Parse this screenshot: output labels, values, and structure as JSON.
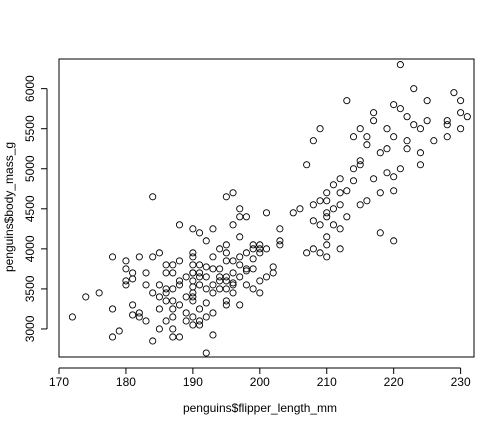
{
  "chart_data": {
    "type": "scatter",
    "title": "",
    "xlabel": "penguins$flipper_length_mm",
    "ylabel": "penguins$body_mass_g",
    "xlim": [
      170,
      232
    ],
    "ylim": [
      2650,
      6370
    ],
    "xticks": [
      170,
      180,
      190,
      200,
      210,
      220,
      230
    ],
    "yticks": [
      3000,
      3500,
      4000,
      4500,
      5000,
      5500,
      6000
    ],
    "grid": false,
    "legend": "none",
    "marker": "open-circle",
    "color": "#000000",
    "points": [
      [
        172,
        3150
      ],
      [
        174,
        3400
      ],
      [
        176,
        3450
      ],
      [
        178,
        3250
      ],
      [
        178,
        2900
      ],
      [
        178,
        3900
      ],
      [
        179,
        2975
      ],
      [
        180,
        3550
      ],
      [
        180,
        3600
      ],
      [
        180,
        3750
      ],
      [
        180,
        3850
      ],
      [
        181,
        3700
      ],
      [
        181,
        3625
      ],
      [
        181,
        3300
      ],
      [
        181,
        3175
      ],
      [
        182,
        3150
      ],
      [
        182,
        3200
      ],
      [
        182,
        3900
      ],
      [
        183,
        3550
      ],
      [
        183,
        3700
      ],
      [
        184,
        2850
      ],
      [
        184,
        3450
      ],
      [
        184,
        3900
      ],
      [
        184,
        4650
      ],
      [
        185,
        3400
      ],
      [
        185,
        3950
      ],
      [
        185,
        3550
      ],
      [
        185,
        3000
      ],
      [
        186,
        3800
      ],
      [
        186,
        3500
      ],
      [
        186,
        3450
      ],
      [
        186,
        3100
      ],
      [
        186,
        3350
      ],
      [
        186,
        3700
      ],
      [
        187,
        3250
      ],
      [
        187,
        3350
      ],
      [
        187,
        2900
      ],
      [
        187,
        3500
      ],
      [
        187,
        3700
      ],
      [
        187,
        3800
      ],
      [
        187,
        3150
      ],
      [
        187,
        3000
      ],
      [
        188,
        3550
      ],
      [
        188,
        2900
      ],
      [
        188,
        3600
      ],
      [
        188,
        3300
      ],
      [
        188,
        3850
      ],
      [
        188,
        4300
      ],
      [
        189,
        3650
      ],
      [
        189,
        3200
      ],
      [
        189,
        3400
      ],
      [
        189,
        3100
      ],
      [
        190,
        3450
      ],
      [
        190,
        3700
      ],
      [
        190,
        3800
      ],
      [
        190,
        3900
      ],
      [
        190,
        3050
      ],
      [
        190,
        3600
      ],
      [
        190,
        4250
      ],
      [
        190,
        3350
      ],
      [
        190,
        3950
      ],
      [
        190,
        3525
      ],
      [
        190,
        3150
      ],
      [
        190,
        3700
      ],
      [
        190,
        3400
      ],
      [
        191,
        3550
      ],
      [
        191,
        3800
      ],
      [
        191,
        3250
      ],
      [
        191,
        3650
      ],
      [
        191,
        3100
      ],
      [
        191,
        4200
      ],
      [
        191,
        3700
      ],
      [
        191,
        3050
      ],
      [
        192,
        2700
      ],
      [
        192,
        3500
      ],
      [
        192,
        3650
      ],
      [
        192,
        3775
      ],
      [
        192,
        3150
      ],
      [
        192,
        4100
      ],
      [
        192,
        3325
      ],
      [
        193,
        3450
      ],
      [
        193,
        3900
      ],
      [
        193,
        3550
      ],
      [
        193,
        2925
      ],
      [
        193,
        3750
      ],
      [
        193,
        4250
      ],
      [
        194,
        3750
      ],
      [
        194,
        3600
      ],
      [
        194,
        3500
      ],
      [
        194,
        4000
      ],
      [
        194,
        3650
      ],
      [
        195,
        3350
      ],
      [
        195,
        3600
      ],
      [
        195,
        3650
      ],
      [
        195,
        4050
      ],
      [
        195,
        3850
      ],
      [
        195,
        4650
      ],
      [
        195,
        3500
      ],
      [
        195,
        3950
      ],
      [
        195,
        3300
      ],
      [
        196,
        3700
      ],
      [
        196,
        3550
      ],
      [
        196,
        4700
      ],
      [
        196,
        3575
      ],
      [
        196,
        3850
      ],
      [
        196,
        3450
      ],
      [
        196,
        4300
      ],
      [
        197,
        4500
      ],
      [
        197,
        3800
      ],
      [
        197,
        3650
      ],
      [
        197,
        3300
      ],
      [
        197,
        4400
      ],
      [
        197,
        3900
      ],
      [
        198,
        3725
      ],
      [
        198,
        4400
      ],
      [
        198,
        3950
      ],
      [
        198,
        3550
      ],
      [
        198,
        3750
      ],
      [
        199,
        4050
      ],
      [
        199,
        3500
      ],
      [
        199,
        3750
      ],
      [
        199,
        4000
      ],
      [
        200,
        4000
      ],
      [
        200,
        4050
      ],
      [
        200,
        3450
      ],
      [
        200,
        3950
      ],
      [
        201,
        4450
      ],
      [
        201,
        3650
      ],
      [
        201,
        4000
      ],
      [
        202,
        3775
      ],
      [
        202,
        3700
      ],
      [
        203,
        4050
      ],
      [
        203,
        4100
      ],
      [
        205,
        4450
      ],
      [
        206,
        4500
      ],
      [
        207,
        3950
      ],
      [
        207,
        5050
      ],
      [
        208,
        4000
      ],
      [
        208,
        5350
      ],
      [
        208,
        4550
      ],
      [
        209,
        3950
      ],
      [
        209,
        4300
      ],
      [
        209,
        4600
      ],
      [
        209,
        5500
      ],
      [
        210,
        4700
      ],
      [
        210,
        4400
      ],
      [
        210,
        3900
      ],
      [
        210,
        4150
      ],
      [
        210,
        4050
      ],
      [
        210,
        4450
      ],
      [
        210,
        4600
      ],
      [
        211,
        4800
      ],
      [
        211,
        4300
      ],
      [
        211,
        4500
      ],
      [
        212,
        4875
      ],
      [
        212,
        4700
      ],
      [
        212,
        4550
      ],
      [
        212,
        4000
      ],
      [
        212,
        4250
      ],
      [
        213,
        4725
      ],
      [
        213,
        5850
      ],
      [
        213,
        4400
      ],
      [
        214,
        4850
      ],
      [
        214,
        5400
      ],
      [
        214,
        5000
      ],
      [
        215,
        5500
      ],
      [
        215,
        4550
      ],
      [
        215,
        5050
      ],
      [
        215,
        5100
      ],
      [
        216,
        5300
      ],
      [
        216,
        4600
      ],
      [
        216,
        5400
      ],
      [
        217,
        4875
      ],
      [
        217,
        5700
      ],
      [
        218,
        4200
      ],
      [
        218,
        4700
      ],
      [
        218,
        5200
      ],
      [
        219,
        5250
      ],
      [
        219,
        5500
      ],
      [
        219,
        4950
      ],
      [
        220,
        5800
      ],
      [
        220,
        4900
      ],
      [
        220,
        5400
      ],
      [
        220,
        4100
      ],
      [
        221,
        6300
      ],
      [
        221,
        5750
      ],
      [
        221,
        5000
      ],
      [
        222,
        5650
      ],
      [
        222,
        5250
      ],
      [
        223,
        5550
      ],
      [
        223,
        6000
      ],
      [
        224,
        5050
      ],
      [
        224,
        5500
      ],
      [
        225,
        5600
      ],
      [
        225,
        5850
      ],
      [
        226,
        5350
      ],
      [
        228,
        5550
      ],
      [
        228,
        5400
      ],
      [
        229,
        5950
      ],
      [
        230,
        5850
      ],
      [
        230,
        5700
      ],
      [
        230,
        5500
      ],
      [
        231,
        5650
      ],
      [
        228,
        5600
      ],
      [
        224,
        5200
      ],
      [
        222,
        5350
      ],
      [
        217,
        5600
      ],
      [
        220,
        4725
      ],
      [
        203,
        4250
      ],
      [
        199,
        3875
      ],
      [
        193,
        3200
      ],
      [
        185,
        3250
      ],
      [
        183,
        3100
      ],
      [
        197,
        4150
      ],
      [
        200,
        3600
      ],
      [
        208,
        4350
      ]
    ]
  }
}
